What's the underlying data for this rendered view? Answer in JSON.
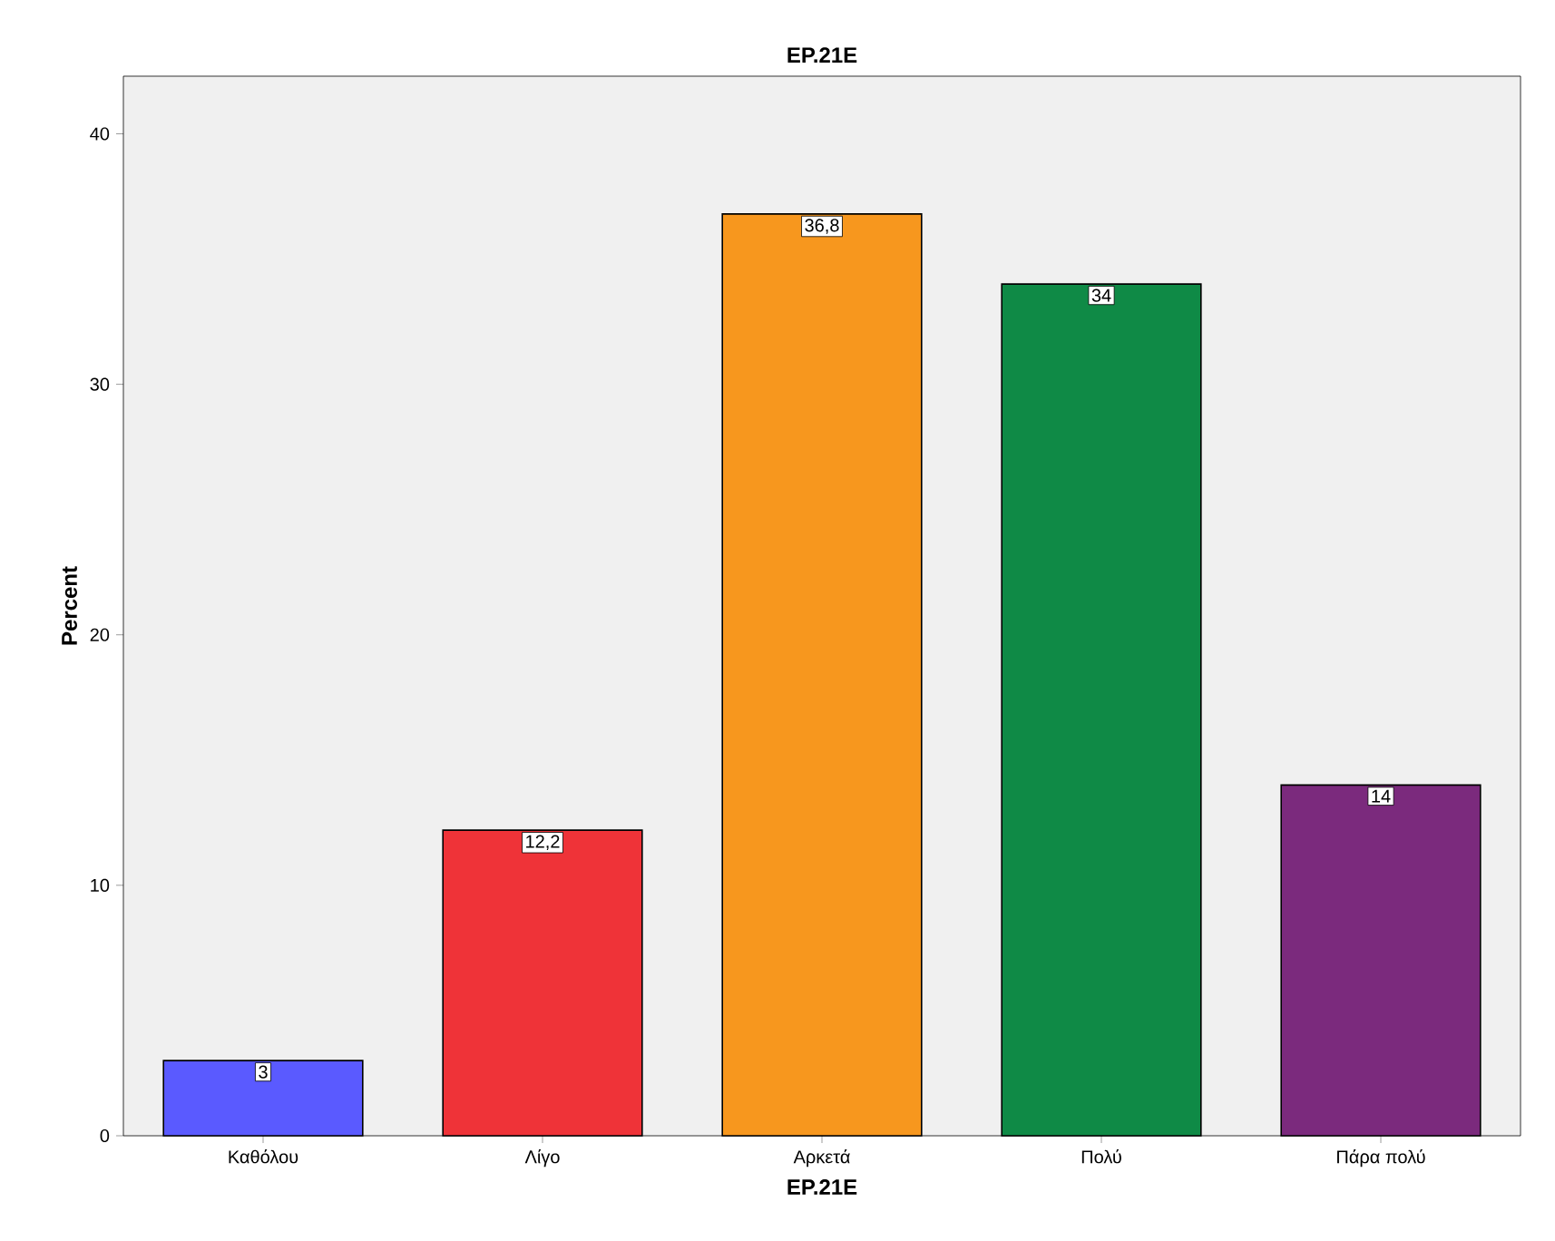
{
  "chart_data": {
    "type": "bar",
    "title": "EP.21E",
    "xlabel": "EP.21E",
    "ylabel": "Percent",
    "categories": [
      "Καθόλου",
      "Λίγο",
      "Αρκετά",
      "Πολύ",
      "Πάρα πολύ"
    ],
    "values": [
      3,
      12.2,
      36.8,
      34,
      14
    ],
    "colors": [
      "#5a5aff",
      "#ef3338",
      "#f7971e",
      "#0f8a46",
      "#7b2a7d"
    ],
    "value_labels": [
      "3",
      "12,2",
      "36,8",
      "34",
      "14"
    ],
    "ylim": [
      0,
      42.3
    ],
    "yticks": [
      0,
      10,
      20,
      30,
      40
    ],
    "grid": false
  }
}
